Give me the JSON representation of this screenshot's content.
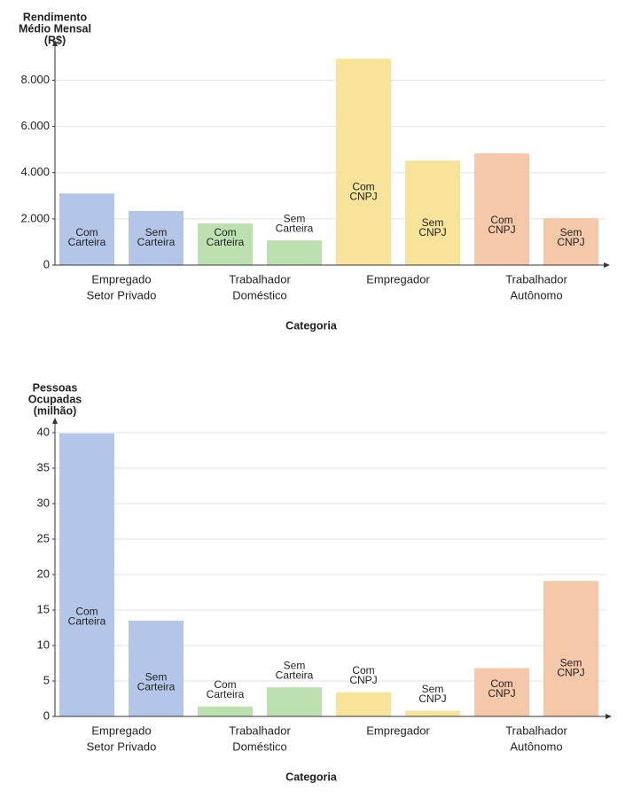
{
  "chart_data": [
    {
      "type": "bar",
      "y_label": [
        "Rendimento",
        "Médio Mensal",
        "(R$)"
      ],
      "x_label": "Categoria",
      "ylim": [
        0,
        9400
      ],
      "yticks": [
        0,
        {
          "value": 2000,
          "label": "2.000"
        },
        {
          "value": 4000,
          "label": "4.000"
        },
        {
          "value": 6000,
          "label": "6.000"
        },
        {
          "value": 8000,
          "label": "8.000"
        }
      ],
      "grid": true,
      "groups": [
        {
          "label": [
            "Empregado",
            "Setor Privado"
          ],
          "color": "#b4c6e7",
          "bars": [
            {
              "label": [
                "Com",
                "Carteira"
              ],
              "value": 3100
            },
            {
              "label": [
                "Sem",
                "Carteira"
              ],
              "value": 2340
            }
          ]
        },
        {
          "label": [
            "Trabalhador",
            "Doméstico"
          ],
          "color": "#bce0b0",
          "bars": [
            {
              "label": [
                "Com",
                "Carteira"
              ],
              "value": 1800
            },
            {
              "label": [
                "Sem",
                "Carteira"
              ],
              "value": 1070
            }
          ]
        },
        {
          "label": [
            "Empregador"
          ],
          "color": "#f8e39b",
          "bars": [
            {
              "label": [
                "Com",
                "CNPJ"
              ],
              "value": 8930
            },
            {
              "label": [
                "Sem",
                "CNPJ"
              ],
              "value": 4520
            }
          ]
        },
        {
          "label": [
            "Trabalhador",
            "Autônomo"
          ],
          "color": "#f5c8aa",
          "bars": [
            {
              "label": [
                "Com",
                "CNPJ"
              ],
              "value": 4830
            },
            {
              "label": [
                "Sem",
                "CNPJ"
              ],
              "value": 2030
            }
          ]
        }
      ]
    },
    {
      "type": "bar",
      "y_label": [
        "Pessoas",
        "Ocupadas",
        "(milhão)"
      ],
      "x_label": "Categoria",
      "ylim": [
        0,
        41
      ],
      "yticks": [
        0,
        5,
        10,
        15,
        20,
        25,
        30,
        35,
        40
      ],
      "grid": true,
      "groups": [
        {
          "label": [
            "Empregado",
            "Setor Privado"
          ],
          "color": "#b4c6e7",
          "bars": [
            {
              "label": [
                "Com",
                "Carteira"
              ],
              "value": 39.9
            },
            {
              "label": [
                "Sem",
                "Carteira"
              ],
              "value": 13.5
            }
          ]
        },
        {
          "label": [
            "Trabalhador",
            "Doméstico"
          ],
          "color": "#bce0b0",
          "bars": [
            {
              "label": [
                "Com",
                "Carteira"
              ],
              "value": 1.4
            },
            {
              "label": [
                "Sem",
                "Carteira"
              ],
              "value": 4.1
            }
          ]
        },
        {
          "label": [
            "Empregador"
          ],
          "color": "#f8e39b",
          "bars": [
            {
              "label": [
                "Com",
                "CNPJ"
              ],
              "value": 3.4
            },
            {
              "label": [
                "Sem",
                "CNPJ"
              ],
              "value": 0.8
            }
          ]
        },
        {
          "label": [
            "Trabalhador",
            "Autônomo"
          ],
          "color": "#f5c8aa",
          "bars": [
            {
              "label": [
                "Com",
                "CNPJ"
              ],
              "value": 6.8
            },
            {
              "label": [
                "Sem",
                "CNPJ"
              ],
              "value": 19.1
            }
          ]
        }
      ]
    }
  ]
}
